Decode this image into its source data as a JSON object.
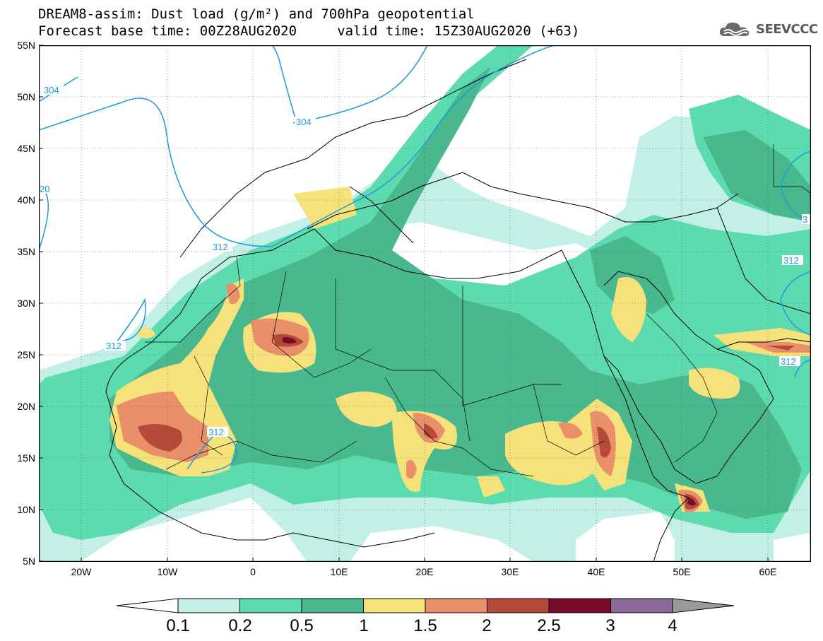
{
  "title": {
    "line1": "DREAM8-assim: Dust load (g/m²) and 700hPa geopotential",
    "line2": "Forecast base time: 00Z28AUG2020     valid time: 15Z30AUG2020 (+63)"
  },
  "logo": {
    "text": "SEEVCCC",
    "icon": "cloud-logo-icon"
  },
  "map": {
    "projection": "plate-carree",
    "lon_range": [
      -25,
      65
    ],
    "lat_range": [
      5,
      55
    ],
    "grid": "dotted",
    "lat_labels": [
      "55N",
      "50N",
      "45N",
      "40N",
      "35N",
      "30N",
      "25N",
      "20N",
      "15N",
      "10N",
      "5N"
    ],
    "lon_labels": [
      "20W",
      "10W",
      "0",
      "10E",
      "20E",
      "30E",
      "40E",
      "50E",
      "60E"
    ],
    "contour_labels": [
      "304",
      "304",
      "20",
      "312",
      "312",
      "312",
      "312",
      "312",
      "3"
    ]
  },
  "colorbar": {
    "ticks": [
      "0.1",
      "0.2",
      "0.5",
      "1",
      "1.5",
      "2",
      "2.5",
      "3",
      "4"
    ],
    "colors": [
      "#c2efe6",
      "#5cdcae",
      "#49b88f",
      "#f6e27a",
      "#e9906a",
      "#b54a3b",
      "#7a0a2a",
      "#8b6a9a",
      "#9a9a9a"
    ]
  }
}
